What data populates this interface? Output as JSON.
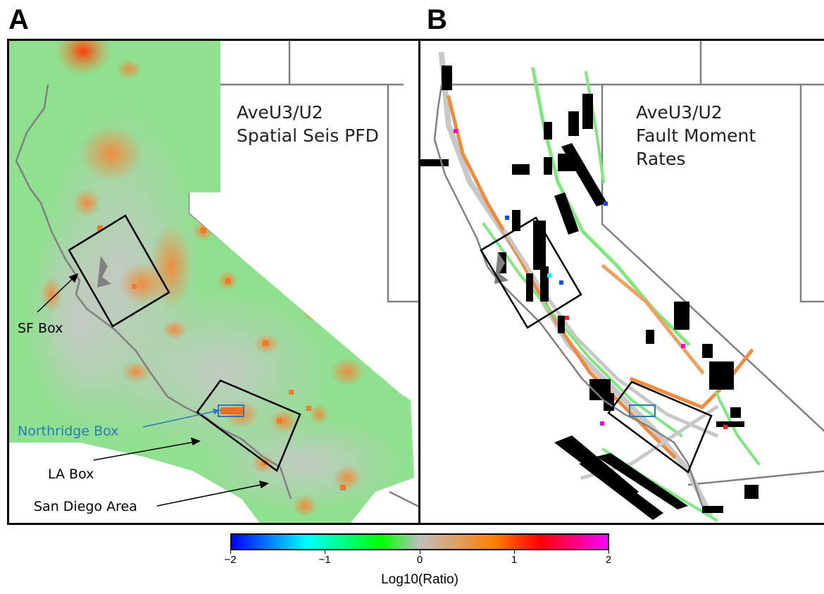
{
  "panels": {
    "a": {
      "letter": "A",
      "title_line1": "AveU3/U2",
      "title_line2": "Spatial Seis PFD",
      "annotations": {
        "sf_box": "SF Box",
        "northridge_box": "Northridge Box",
        "la_box": "LA Box",
        "san_diego": "San Diego Area"
      }
    },
    "b": {
      "letter": "B",
      "title_line1": "AveU3/U2",
      "title_line2": "Fault Moment",
      "title_line3": "Rates"
    }
  },
  "colorbar": {
    "title": "Log10(Ratio)",
    "ticks": [
      "−2",
      "−1",
      "0",
      "1",
      "2"
    ],
    "range": [
      -2,
      2
    ],
    "colors": [
      "#0000ff",
      "#00ffff",
      "#00ff00",
      "#bfbfbf",
      "#ff7f00",
      "#ff0000",
      "#ff00ff"
    ]
  },
  "colors": {
    "boundary": "#808080",
    "box": "#000000",
    "northridge": "#2a7ab8",
    "seis_green": "#8fe08f",
    "seis_orange": "#f0a060",
    "fault_black": "#000000"
  }
}
